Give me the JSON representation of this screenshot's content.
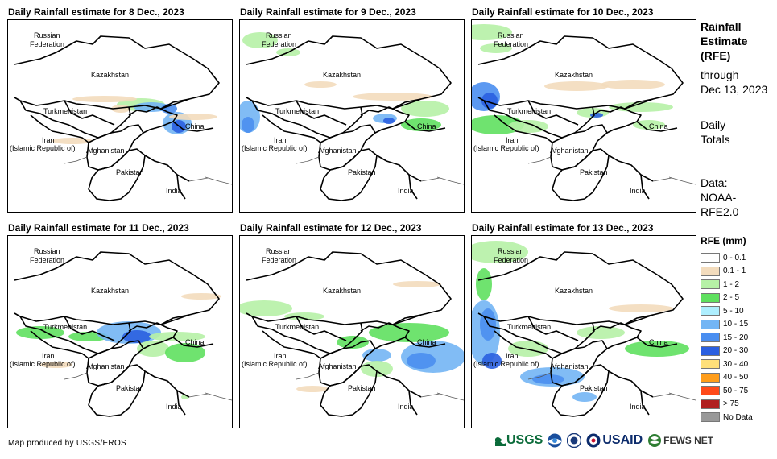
{
  "panels": [
    {
      "title": "Daily Rainfall estimate for 8 Dec., 2023"
    },
    {
      "title": "Daily Rainfall estimate for 9 Dec., 2023"
    },
    {
      "title": "Daily Rainfall estimate for 10 Dec., 2023"
    },
    {
      "title": "Daily Rainfall estimate for 11 Dec., 2023"
    },
    {
      "title": "Daily Rainfall estimate for 12 Dec., 2023"
    },
    {
      "title": "Daily Rainfall estimate for 13 Dec., 2023"
    }
  ],
  "map_labels": {
    "russia_1": "Russian",
    "russia_2": "Federation",
    "kazakhstan": "Kazakhstan",
    "turkmenistan": "Turkmenistan",
    "iran_1": "Iran",
    "iran_2": "(Islamic Republic of)",
    "afghanistan": "Afghanistan",
    "pakistan": "Pakistan",
    "india": "India",
    "china": "China"
  },
  "sidebar": {
    "title_1": "Rainfall",
    "title_2": "Estimate",
    "title_3": "(RFE)",
    "through_1": "through",
    "through_2": "Dec 13, 2023",
    "totals_1": "Daily",
    "totals_2": "Totals",
    "data_1": "Data:",
    "data_2": "NOAA-",
    "data_3": "RFE2.0"
  },
  "legend": {
    "title": "RFE (mm)",
    "items": [
      {
        "label": "0 - 0.1",
        "color": "#ffffff"
      },
      {
        "label": "0.1 - 1",
        "color": "#f3dcbd"
      },
      {
        "label": "1 - 2",
        "color": "#b6f1a6"
      },
      {
        "label": "2 - 5",
        "color": "#5fe05f"
      },
      {
        "label": "5 - 10",
        "color": "#aeefff"
      },
      {
        "label": "10 - 15",
        "color": "#73b5f4"
      },
      {
        "label": "15 - 20",
        "color": "#4a8ef0"
      },
      {
        "label": "20 - 30",
        "color": "#2a5fe0"
      },
      {
        "label": "30 - 40",
        "color": "#ffe07a"
      },
      {
        "label": "40 - 50",
        "color": "#ff9d1a"
      },
      {
        "label": "50 - 75",
        "color": "#ff4a1a"
      },
      {
        "label": "> 75",
        "color": "#b02020"
      },
      {
        "label": "No Data",
        "color": "#999999"
      }
    ]
  },
  "credit": "Map produced by USGS/EROS",
  "logos": {
    "usgs": "USGS",
    "usaid": "USAID",
    "fews": "FEWS NET"
  }
}
